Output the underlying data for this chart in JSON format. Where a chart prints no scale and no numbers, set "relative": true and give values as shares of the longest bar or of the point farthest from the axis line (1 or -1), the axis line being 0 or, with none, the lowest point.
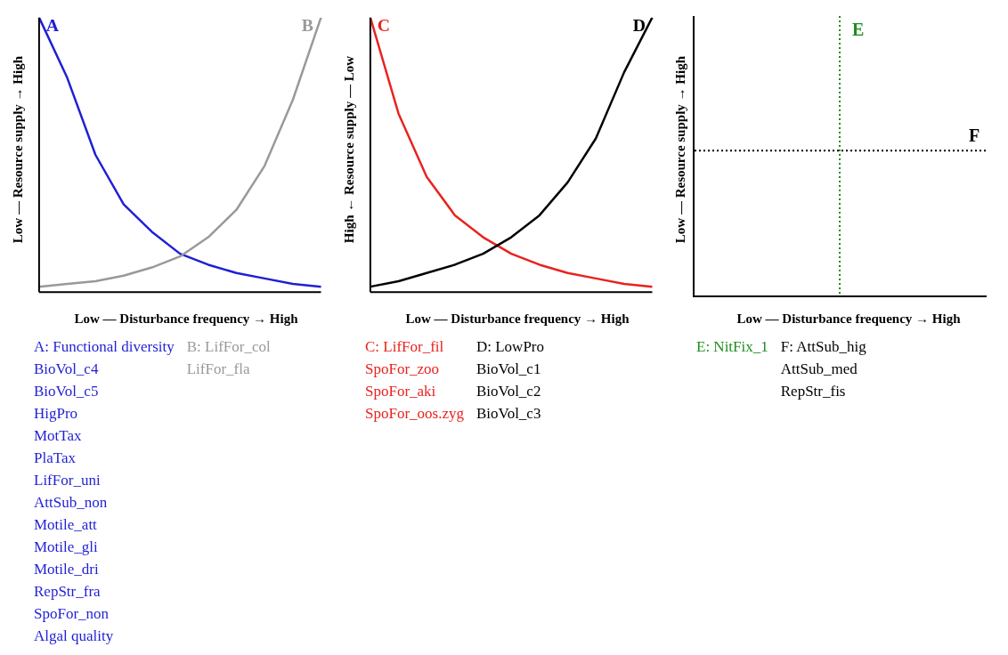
{
  "chart_data": [
    {
      "type": "line",
      "relative": true,
      "ylabel": "Low — Resource supply → High",
      "xlabel": "Low — Disturbance frequency → High",
      "marker": "none",
      "categories": [
        null,
        null,
        null,
        null,
        null,
        null,
        null,
        null,
        null,
        null,
        null
      ],
      "series": [
        {
          "name": "A",
          "color": "#1f1fd6",
          "values": [
            1.0,
            0.78,
            0.5,
            0.32,
            0.22,
            0.14,
            0.1,
            0.07,
            0.05,
            0.03,
            0.02
          ]
        },
        {
          "name": "B",
          "color": "#999999",
          "values": [
            0.02,
            0.03,
            0.04,
            0.06,
            0.09,
            0.13,
            0.2,
            0.3,
            0.46,
            0.7,
            1.0
          ]
        }
      ],
      "annotations": [
        "A: Functional diversity\nBioVol_c4\nBioVol_c5\nHigPro\nMotTax\nPlaTax\nLifFor_uni\nAttSub_non\nMotile_att\nMotile_gli\nMotile_dri\nRepStr_fra\nSpoFor_non\nAlgal quality",
        "B: LifFor_col\nLifFor_fla"
      ]
    },
    {
      "type": "line",
      "relative": true,
      "ylabel": "High ← Resource supply — Low",
      "xlabel": "Low — Disturbance frequency → High",
      "marker": "none",
      "categories": [
        null,
        null,
        null,
        null,
        null,
        null,
        null,
        null,
        null,
        null,
        null
      ],
      "series": [
        {
          "name": "C",
          "color": "#e8231e",
          "values": [
            1.0,
            0.65,
            0.42,
            0.28,
            0.2,
            0.14,
            0.1,
            0.07,
            0.05,
            0.03,
            0.02
          ]
        },
        {
          "name": "D",
          "color": "#000000",
          "values": [
            0.02,
            0.04,
            0.07,
            0.1,
            0.14,
            0.2,
            0.28,
            0.4,
            0.56,
            0.8,
            1.0
          ]
        }
      ],
      "annotations": [
        "C: LifFor_fil\nSpoFor_zoo\nSpoFor_aki\nSpoFor_oos.zyg",
        "D: LowPro\nBioVol_c1\nBioVol_c2\nBioVol_c3"
      ]
    },
    {
      "type": "other",
      "ylabel": "Low — Resource supply → High",
      "xlabel": "Low — Disturbance frequency → High",
      "annotations": [
        "E",
        "F",
        "E: NitFix_1",
        "F: AttSub_hig\nAttSub_med\nRepStr_fis"
      ]
    }
  ]
}
